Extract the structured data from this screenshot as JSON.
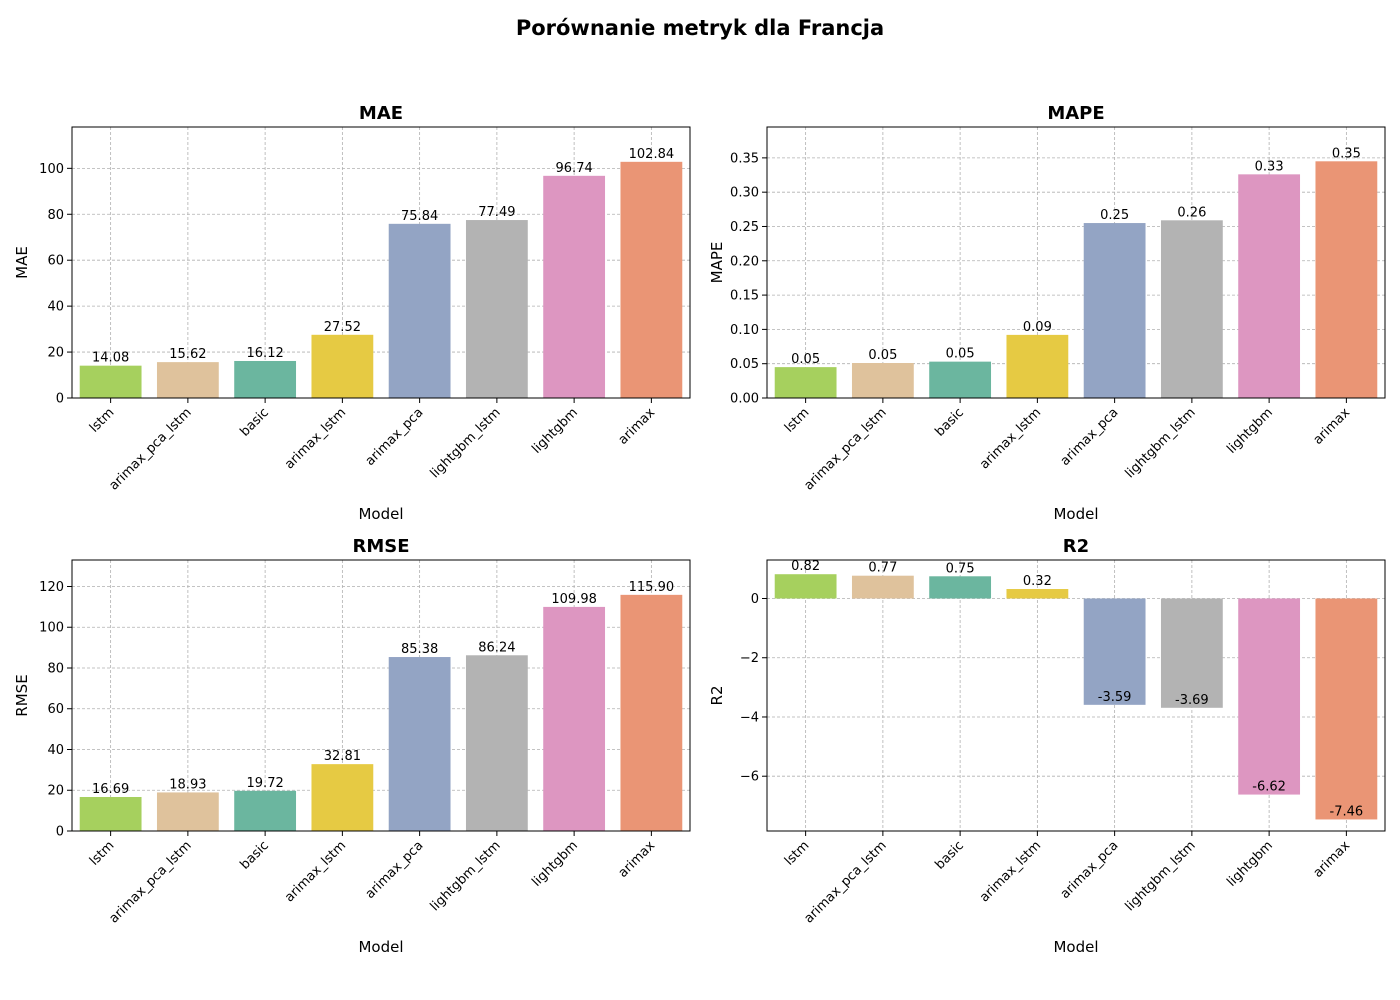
{
  "figure": {
    "title": "Porównanie metryk dla Francja"
  },
  "chart_data": [
    {
      "type": "bar",
      "title": "MAE",
      "xlabel": "Model",
      "ylabel": "MAE",
      "ylim": [
        0,
        118
      ],
      "yticks": [
        0,
        20,
        40,
        60,
        80,
        100
      ],
      "grid": true,
      "categories": [
        "lstm",
        "arimax_pca_lstm",
        "basic",
        "arimax_lstm",
        "arimax_pca",
        "lightgbm_lstm",
        "lightgbm",
        "arimax"
      ],
      "values": [
        14.08,
        15.62,
        16.12,
        27.52,
        75.84,
        77.49,
        96.74,
        102.84
      ],
      "labels": [
        "14.08",
        "15.62",
        "16.12",
        "27.52",
        "75.84",
        "77.49",
        "96.74",
        "102.84"
      ]
    },
    {
      "type": "bar",
      "title": "MAPE",
      "xlabel": "Model",
      "ylabel": "MAPE",
      "ylim": [
        0,
        0.395
      ],
      "yticks": [
        0.0,
        0.05,
        0.1,
        0.15,
        0.2,
        0.25,
        0.3,
        0.35
      ],
      "ytick_decimals": 2,
      "grid": true,
      "categories": [
        "lstm",
        "arimax_pca_lstm",
        "basic",
        "arimax_lstm",
        "arimax_pca",
        "lightgbm_lstm",
        "lightgbm",
        "arimax"
      ],
      "values": [
        0.045,
        0.051,
        0.053,
        0.092,
        0.255,
        0.259,
        0.326,
        0.345
      ],
      "labels": [
        "0.05",
        "0.05",
        "0.05",
        "0.09",
        "0.25",
        "0.26",
        "0.33",
        "0.35"
      ]
    },
    {
      "type": "bar",
      "title": "RMSE",
      "xlabel": "Model",
      "ylabel": "RMSE",
      "ylim": [
        0,
        133
      ],
      "yticks": [
        0,
        20,
        40,
        60,
        80,
        100,
        120
      ],
      "grid": true,
      "categories": [
        "lstm",
        "arimax_pca_lstm",
        "basic",
        "arimax_lstm",
        "arimax_pca",
        "lightgbm_lstm",
        "lightgbm",
        "arimax"
      ],
      "values": [
        16.69,
        18.93,
        19.72,
        32.81,
        85.38,
        86.24,
        109.98,
        115.9
      ],
      "labels": [
        "16.69",
        "18.93",
        "19.72",
        "32.81",
        "85.38",
        "86.24",
        "109.98",
        "115.90"
      ]
    },
    {
      "type": "bar",
      "title": "R2",
      "xlabel": "Model",
      "ylabel": "R2",
      "ylim": [
        -7.85,
        1.3
      ],
      "yticks": [
        -6,
        -4,
        -2,
        0
      ],
      "grid": true,
      "categories": [
        "lstm",
        "arimax_pca_lstm",
        "basic",
        "arimax_lstm",
        "arimax_pca",
        "lightgbm_lstm",
        "lightgbm",
        "arimax"
      ],
      "values": [
        0.82,
        0.77,
        0.75,
        0.32,
        -3.59,
        -3.69,
        -6.62,
        -7.46
      ],
      "labels": [
        "0.82",
        "0.77",
        "0.75",
        "0.32",
        "-3.59",
        "-3.69",
        "-6.62",
        "-7.46"
      ]
    }
  ],
  "colors": [
    "#a6d05e",
    "#dfc29c",
    "#6bb69f",
    "#e6ca43",
    "#93a4c4",
    "#b3b3b3",
    "#dd96c1",
    "#ea9575"
  ]
}
